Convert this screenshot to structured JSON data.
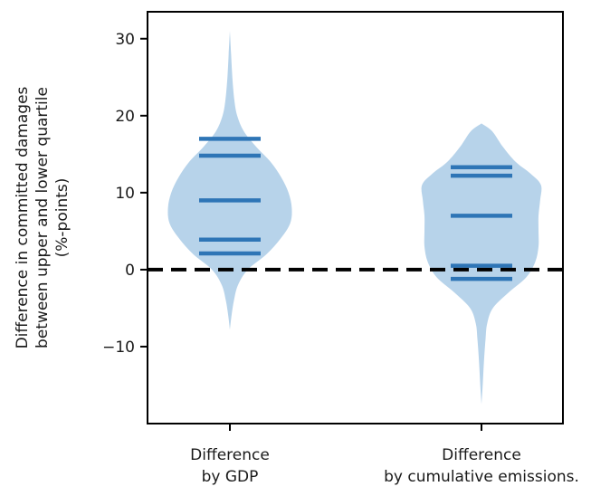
{
  "chart_data": {
    "type": "violin",
    "ylabel_lines": [
      "Difference in committed damages",
      "between upper and lower quartile",
      "(%-points)"
    ],
    "ylim": [
      -20,
      33.5
    ],
    "yticks": [
      -10,
      0,
      10,
      20,
      30
    ],
    "reference_line": {
      "y": 0,
      "style": "dashed",
      "color": "#000000"
    },
    "fill_color": "#b7d3ea",
    "line_color": "#2e75b6",
    "violins": [
      {
        "label_lines": [
          "Difference",
          "by GDP"
        ],
        "range": [
          -7.8,
          31
        ],
        "quantile_lines": [
          17,
          14.8,
          9,
          3.9,
          2.1
        ],
        "profile": [
          [
            -7.8,
            0.0
          ],
          [
            -6,
            0.02
          ],
          [
            -4,
            0.05
          ],
          [
            -2,
            0.1
          ],
          [
            0,
            0.22
          ],
          [
            2,
            0.45
          ],
          [
            4,
            0.62
          ],
          [
            6,
            0.74
          ],
          [
            8,
            0.76
          ],
          [
            10,
            0.72
          ],
          [
            12,
            0.63
          ],
          [
            14,
            0.5
          ],
          [
            16,
            0.32
          ],
          [
            18,
            0.17
          ],
          [
            20,
            0.09
          ],
          [
            22,
            0.055
          ],
          [
            25,
            0.03
          ],
          [
            28,
            0.015
          ],
          [
            31,
            0.0
          ]
        ]
      },
      {
        "label_lines": [
          "Difference",
          "by cumulative emissions."
        ],
        "range": [
          -17.5,
          19
        ],
        "quantile_lines": [
          13.3,
          12.2,
          7,
          0.5,
          -1.2
        ],
        "profile": [
          [
            -17.5,
            0.0
          ],
          [
            -15,
            0.015
          ],
          [
            -12,
            0.03
          ],
          [
            -9,
            0.05
          ],
          [
            -7,
            0.07
          ],
          [
            -5,
            0.14
          ],
          [
            -3,
            0.33
          ],
          [
            -1,
            0.55
          ],
          [
            1,
            0.66
          ],
          [
            3,
            0.7
          ],
          [
            5,
            0.7
          ],
          [
            7,
            0.7
          ],
          [
            9,
            0.72
          ],
          [
            11,
            0.73
          ],
          [
            12.5,
            0.6
          ],
          [
            14,
            0.42
          ],
          [
            16,
            0.26
          ],
          [
            18,
            0.13
          ],
          [
            19,
            0.0
          ]
        ]
      }
    ]
  }
}
